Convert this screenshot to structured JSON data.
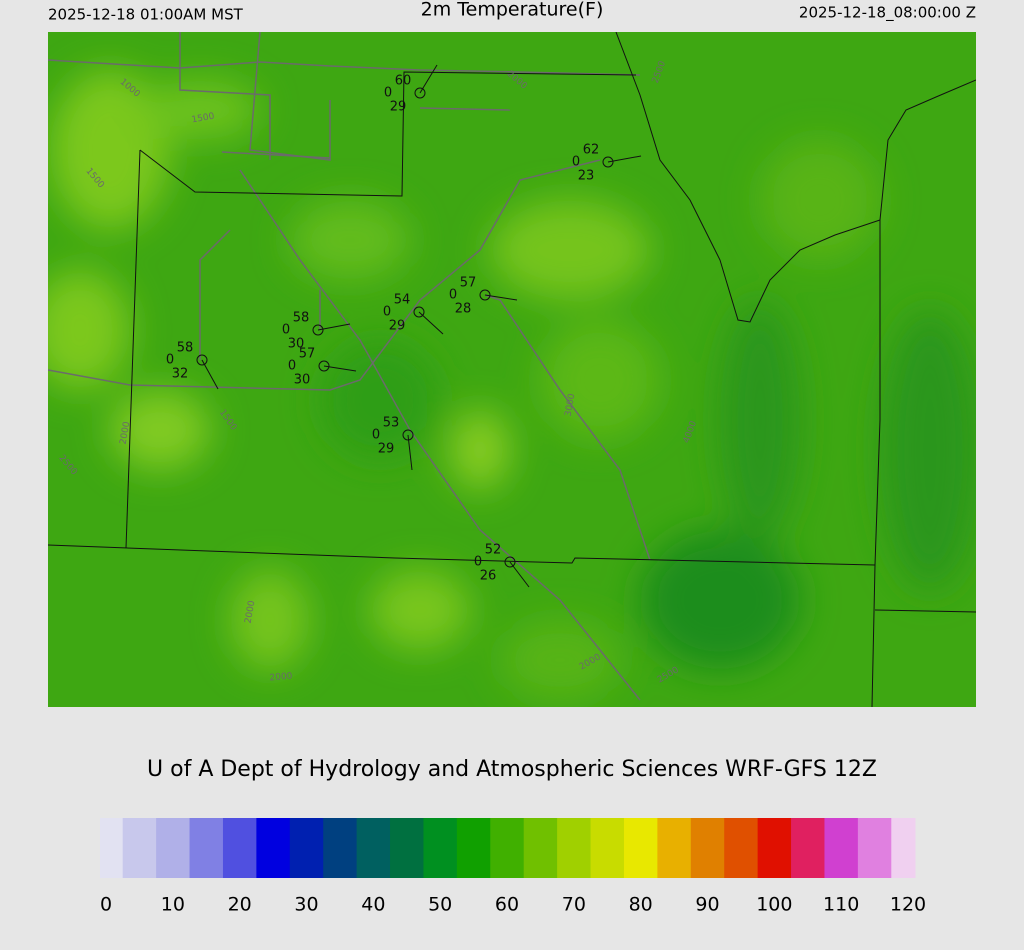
{
  "header": {
    "left": "2025-12-18 01:00AM MST",
    "title": "2m Temperature(F)",
    "right": "2025-12-18_08:00:00 Z"
  },
  "stations": [
    {
      "temperature": "60",
      "wind": "0",
      "dewpoint": "29"
    },
    {
      "temperature": "62",
      "wind": "0",
      "dewpoint": "23"
    },
    {
      "temperature": "57",
      "wind": "0",
      "dewpoint": "28"
    },
    {
      "temperature": "54",
      "wind": "0",
      "dewpoint": "29"
    },
    {
      "temperature": "58",
      "wind": "0",
      "dewpoint": "30"
    },
    {
      "temperature": "57",
      "wind": "0",
      "dewpoint": "30"
    },
    {
      "temperature": "58",
      "wind": "0",
      "dewpoint": "32"
    },
    {
      "temperature": "53",
      "wind": "0",
      "dewpoint": "29"
    },
    {
      "temperature": "52",
      "wind": "0",
      "dewpoint": "26"
    }
  ],
  "contour_labels": [
    "1000",
    "1500",
    "1500",
    "2000",
    "2500",
    "1500",
    "2000",
    "2000",
    "2000",
    "2500",
    "2000",
    "2500",
    "4000",
    "3000"
  ],
  "credit": "U of A Dept of Hydrology and Atmospheric Sciences WRF-GFS 12Z",
  "colorbar": {
    "lim": [
      0,
      120
    ],
    "ticks": [
      0,
      10,
      20,
      30,
      40,
      50,
      60,
      70,
      80,
      90,
      100,
      110,
      120
    ],
    "colors": [
      "#e2e2f2",
      "#c8c8ec",
      "#b0b0e8",
      "#8080e4",
      "#5050e0",
      "#0000e0",
      "#0020b0",
      "#004080",
      "#006060",
      "#007040",
      "#009020",
      "#10a000",
      "#40b000",
      "#70c000",
      "#a0d000",
      "#c8dc00",
      "#e8e800",
      "#e8b000",
      "#e08000",
      "#e05000",
      "#e01000",
      "#e02060",
      "#d040d0",
      "#e080e0",
      "#f0d0f0"
    ]
  }
}
